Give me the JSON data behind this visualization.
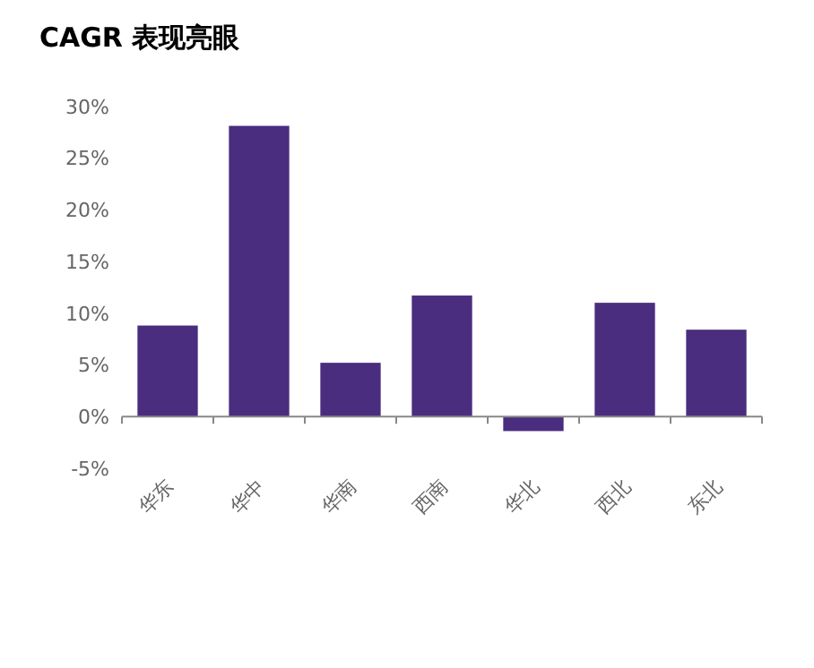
{
  "chart_data": {
    "type": "bar",
    "title": "CAGR 表现亮眼",
    "categories": [
      "华东",
      "华中",
      "华南",
      "西南",
      "华北",
      "西北",
      "东北"
    ],
    "values": [
      8.8,
      28.1,
      5.2,
      11.7,
      -1.4,
      11.0,
      8.4
    ],
    "color": "#4b2d7f",
    "ylim": [
      -5,
      30
    ],
    "yticks": [
      {
        "value": -5,
        "label": "-5%"
      },
      {
        "value": 0,
        "label": "0%"
      },
      {
        "value": 5,
        "label": "5%"
      },
      {
        "value": 10,
        "label": "10%"
      },
      {
        "value": 15,
        "label": "15%"
      },
      {
        "value": 20,
        "label": "20%"
      },
      {
        "value": 25,
        "label": "25%"
      },
      {
        "value": 30,
        "label": "30%"
      }
    ],
    "data_labels": false
  }
}
